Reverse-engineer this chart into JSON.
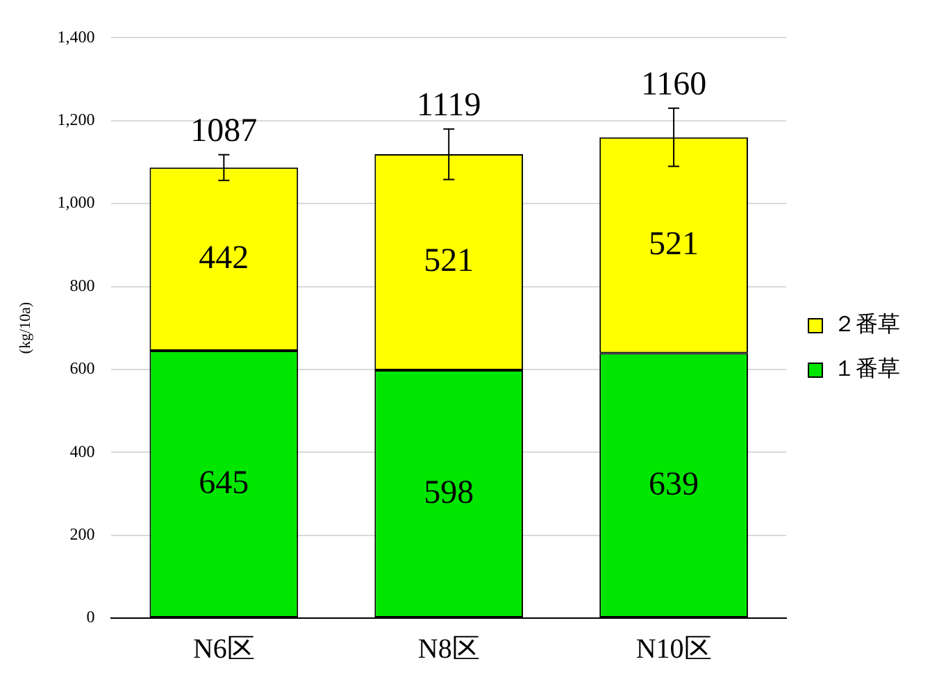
{
  "chart_data": {
    "type": "bar",
    "stacked": true,
    "ylabel": "(kg/10a)",
    "categories": [
      "N6区",
      "N8区",
      "N10区"
    ],
    "series": [
      {
        "name": "１番草",
        "color": "#00e600",
        "values": [
          645,
          598,
          639
        ]
      },
      {
        "name": "２番草",
        "color": "#ffff00",
        "values": [
          442,
          521,
          521
        ],
        "errors": [
          31,
          61,
          70
        ]
      }
    ],
    "ylim": [
      0,
      1400
    ],
    "yticks": [
      {
        "value": 0,
        "label": "0"
      },
      {
        "value": 200,
        "label": "200"
      },
      {
        "value": 400,
        "label": "400"
      },
      {
        "value": 600,
        "label": "600"
      },
      {
        "value": 800,
        "label": "800"
      },
      {
        "value": 1000,
        "label": "1,000"
      },
      {
        "value": 1200,
        "label": "1,200"
      },
      {
        "value": 1400,
        "label": "1,400"
      }
    ],
    "grid": "y",
    "legend": "right",
    "data_labels": true,
    "totals": [
      "1087",
      "1119",
      "1160"
    ]
  }
}
